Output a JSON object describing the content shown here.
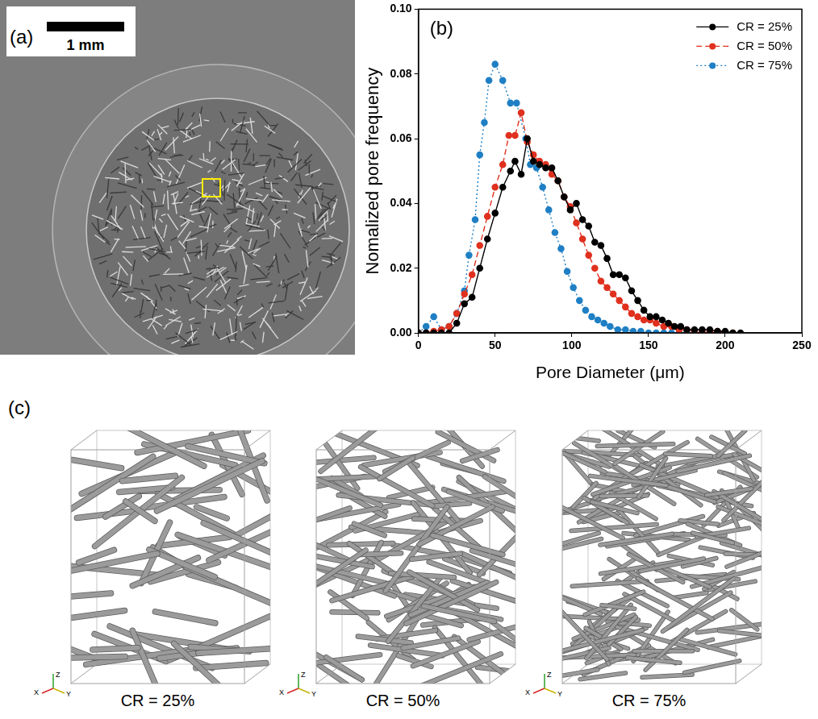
{
  "chart_data": {
    "type": "line",
    "x_label": "Pore Diameter (μm)",
    "y_label": "Nomalized pore frequency",
    "annotations": [
      "(b)"
    ],
    "xlim": [
      0,
      250
    ],
    "xticks": [
      0,
      50,
      100,
      150,
      200,
      250
    ],
    "ylim": [
      0,
      0.1
    ],
    "yticks": [
      {
        "value": 0,
        "label": "0.00"
      },
      {
        "value": 0.02,
        "label": "0.02"
      },
      {
        "value": 0.04,
        "label": "0.04"
      },
      {
        "value": 0.06,
        "label": "0.06"
      },
      {
        "value": 0.08,
        "label": "0.08"
      },
      {
        "value": 0.1,
        "label": "0.10"
      }
    ],
    "grid": false,
    "legend": "upper right",
    "series": [
      {
        "name": "CR = 25%",
        "color": "#000000",
        "marker": "circle",
        "line_style": "solid",
        "x": [
          0,
          5,
          10,
          15,
          20,
          25,
          30,
          35,
          40,
          45,
          50,
          55,
          60,
          63,
          67,
          71,
          75,
          79,
          83,
          87,
          91,
          95,
          99,
          103,
          107,
          111,
          115,
          119,
          123,
          127,
          131,
          135,
          139,
          143,
          147,
          151,
          155,
          159,
          163,
          167,
          171,
          175,
          180,
          185,
          190,
          195,
          200,
          205,
          210
        ],
        "values": [
          0,
          0,
          0,
          0,
          0,
          0.003,
          0.009,
          0.011,
          0.02,
          0.029,
          0.037,
          0.045,
          0.05,
          0.053,
          0.049,
          0.06,
          0.053,
          0.052,
          0.051,
          0.051,
          0.047,
          0.042,
          0.038,
          0.04,
          0.035,
          0.033,
          0.028,
          0.027,
          0.023,
          0.018,
          0.018,
          0.017,
          0.013,
          0.01,
          0.007,
          0.005,
          0.005,
          0.004,
          0.003,
          0.002,
          0.002,
          0.001,
          0.001,
          0.001,
          0.001,
          0.0005,
          0.0005,
          0,
          0
        ]
      },
      {
        "name": "CR = 50%",
        "color": "#e0301e",
        "marker": "circle",
        "line_style": "dashed",
        "x": [
          0,
          5,
          10,
          15,
          20,
          25,
          30,
          35,
          40,
          45,
          50,
          55,
          59,
          63,
          67,
          71,
          75,
          79,
          83,
          87,
          91,
          95,
          99,
          103,
          107,
          111,
          115,
          119,
          123,
          127,
          131,
          135,
          139,
          143,
          147,
          151,
          155,
          160,
          165,
          170,
          175,
          180,
          185,
          190,
          195,
          200,
          205
        ],
        "values": [
          0,
          0,
          0.0005,
          0.001,
          0.002,
          0.006,
          0.012,
          0.018,
          0.027,
          0.036,
          0.045,
          0.052,
          0.061,
          0.061,
          0.068,
          0.059,
          0.055,
          0.053,
          0.052,
          0.049,
          0.047,
          0.042,
          0.039,
          0.034,
          0.029,
          0.024,
          0.02,
          0.016,
          0.014,
          0.012,
          0.01,
          0.008,
          0.006,
          0.005,
          0.004,
          0.004,
          0.003,
          0.002,
          0.002,
          0.001,
          0.001,
          0.0005,
          0.0005,
          0.0005,
          0.0005,
          0,
          0
        ]
      },
      {
        "name": "CR = 75%",
        "color": "#1f7fc4",
        "marker": "circle",
        "line_style": "dotted",
        "x": [
          0,
          5,
          10,
          15,
          20,
          25,
          30,
          33,
          37,
          40,
          43,
          46,
          50,
          55,
          60,
          64,
          70,
          73,
          77,
          81,
          85,
          89,
          93,
          97,
          101,
          105,
          109,
          113,
          117,
          121,
          125,
          130,
          135,
          140,
          145,
          150,
          155,
          160,
          165,
          170,
          175
        ],
        "values": [
          0,
          0.002,
          0.005,
          0.001,
          0.002,
          0.006,
          0.013,
          0.024,
          0.035,
          0.055,
          0.065,
          0.078,
          0.083,
          0.078,
          0.071,
          0.071,
          0.06,
          0.052,
          0.051,
          0.045,
          0.038,
          0.031,
          0.026,
          0.019,
          0.014,
          0.01,
          0.007,
          0.005,
          0.004,
          0.003,
          0.002,
          0.001,
          0.001,
          0.0005,
          0.0005,
          0,
          0,
          0,
          0,
          0,
          0
        ]
      }
    ]
  },
  "panel_a": {
    "label": "(a)",
    "scale_bar": "1 mm"
  },
  "panel_c": {
    "label": "(c)",
    "renderings": [
      {
        "caption": "CR = 25%"
      },
      {
        "caption": "CR = 50%"
      },
      {
        "caption": "CR = 75%"
      }
    ],
    "axis_labels": [
      "Z",
      "X",
      "Y"
    ]
  }
}
